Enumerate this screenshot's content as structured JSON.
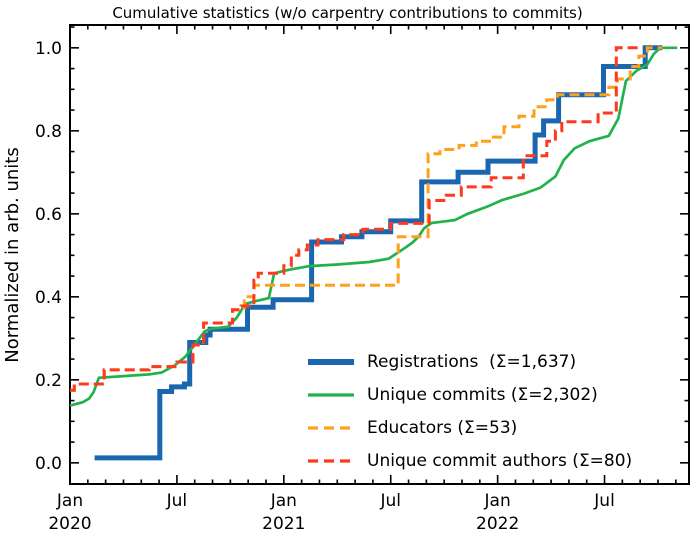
{
  "chart": {
    "background": "#ffffff",
    "axis_color": "#000000"
  },
  "chart_data": {
    "type": "line",
    "title": "Cumulative statistics (w/o carpentry contributions to commits)",
    "xlabel": "",
    "grid": false,
    "legend_position": "lower right",
    "x_axis": {
      "lim": [
        2020.0,
        2022.895
      ],
      "minor_tick_months": 1,
      "minor_tick_count": 35,
      "major_ticks": [
        {
          "month_index": 0,
          "label": "Jan",
          "year": "2020"
        },
        {
          "month_index": 6,
          "label": "Jul"
        },
        {
          "month_index": 12,
          "label": "Jan",
          "year": "2021"
        },
        {
          "month_index": 18,
          "label": "Jul"
        },
        {
          "month_index": 24,
          "label": "Jan",
          "year": "2022"
        },
        {
          "month_index": 30,
          "label": "Jul"
        }
      ]
    },
    "y_axis": {
      "label": "Normalized in arb. units",
      "lim": [
        -0.051,
        1.055
      ],
      "minor_step": 0.05,
      "major_ticks": [
        {
          "value": 0.0,
          "label": "0.0"
        },
        {
          "value": 0.2,
          "label": "0.2"
        },
        {
          "value": 0.4,
          "label": "0.4"
        },
        {
          "value": 0.6,
          "label": "0.6"
        },
        {
          "value": 0.8,
          "label": "0.8"
        },
        {
          "value": 1.0,
          "label": "1.0"
        }
      ]
    },
    "series": [
      {
        "id": "registrations",
        "name": "Registrations",
        "total": 1637,
        "legend_label": "Registrations  (Σ=1,637)",
        "color": "#1b67af",
        "style": "solid",
        "width": 5,
        "interp": "step",
        "end_x": 2022.77,
        "points": [
          [
            2020.115,
            0.012
          ],
          [
            2020.42,
            0.172
          ],
          [
            2020.475,
            0.183
          ],
          [
            2020.535,
            0.19
          ],
          [
            2020.56,
            0.29
          ],
          [
            2020.635,
            0.308
          ],
          [
            2020.655,
            0.322
          ],
          [
            2020.83,
            0.375
          ],
          [
            2020.95,
            0.393
          ],
          [
            2021.13,
            0.532
          ],
          [
            2021.27,
            0.545
          ],
          [
            2021.365,
            0.557
          ],
          [
            2021.5,
            0.583
          ],
          [
            2021.645,
            0.677
          ],
          [
            2021.815,
            0.7
          ],
          [
            2021.955,
            0.727
          ],
          [
            2022.175,
            0.79
          ],
          [
            2022.215,
            0.824
          ],
          [
            2022.285,
            0.887
          ],
          [
            2022.495,
            0.955
          ],
          [
            2022.69,
            1.0
          ]
        ]
      },
      {
        "id": "unique-commits",
        "name": "Unique commits",
        "total": 2302,
        "legend_label": "Unique commits (Σ=2,302)",
        "color": "#21b24c",
        "style": "solid",
        "width": 2.7,
        "interp": "linear",
        "end_x": 2022.84,
        "points": [
          [
            2020.0,
            0.138
          ],
          [
            2020.06,
            0.146
          ],
          [
            2020.09,
            0.155
          ],
          [
            2020.11,
            0.17
          ],
          [
            2020.135,
            0.205
          ],
          [
            2020.25,
            0.209
          ],
          [
            2020.37,
            0.213
          ],
          [
            2020.43,
            0.218
          ],
          [
            2020.49,
            0.235
          ],
          [
            2020.54,
            0.256
          ],
          [
            2020.59,
            0.29
          ],
          [
            2020.63,
            0.317
          ],
          [
            2020.66,
            0.323
          ],
          [
            2020.74,
            0.328
          ],
          [
            2020.78,
            0.35
          ],
          [
            2020.82,
            0.383
          ],
          [
            2020.87,
            0.39
          ],
          [
            2020.93,
            0.397
          ],
          [
            2020.955,
            0.457
          ],
          [
            2021.02,
            0.465
          ],
          [
            2021.12,
            0.474
          ],
          [
            2021.25,
            0.478
          ],
          [
            2021.4,
            0.484
          ],
          [
            2021.49,
            0.492
          ],
          [
            2021.55,
            0.512
          ],
          [
            2021.6,
            0.53
          ],
          [
            2021.63,
            0.545
          ],
          [
            2021.655,
            0.565
          ],
          [
            2021.69,
            0.578
          ],
          [
            2021.8,
            0.585
          ],
          [
            2021.86,
            0.6
          ],
          [
            2021.95,
            0.617
          ],
          [
            2022.02,
            0.633
          ],
          [
            2022.12,
            0.648
          ],
          [
            2022.2,
            0.663
          ],
          [
            2022.27,
            0.69
          ],
          [
            2022.31,
            0.73
          ],
          [
            2022.36,
            0.758
          ],
          [
            2022.43,
            0.775
          ],
          [
            2022.52,
            0.788
          ],
          [
            2022.565,
            0.83
          ],
          [
            2022.6,
            0.92
          ],
          [
            2022.65,
            0.945
          ],
          [
            2022.7,
            0.96
          ],
          [
            2022.73,
            0.985
          ],
          [
            2022.76,
            1.0
          ]
        ]
      },
      {
        "id": "educators",
        "name": "Educators",
        "total": 53,
        "legend_label": "Educators (Σ=53)",
        "color": "#ffa01c",
        "style": "dashed",
        "dash": "10 5",
        "width": 3,
        "interp": "step",
        "end_x": 2022.77,
        "points": [
          [
            2020.0,
            0.175
          ],
          [
            2020.02,
            0.19
          ],
          [
            2020.16,
            0.224
          ],
          [
            2020.37,
            0.232
          ],
          [
            2020.5,
            0.243
          ],
          [
            2020.575,
            0.284
          ],
          [
            2020.625,
            0.337
          ],
          [
            2020.76,
            0.369
          ],
          [
            2020.815,
            0.4
          ],
          [
            2020.86,
            0.428
          ],
          [
            2021.535,
            0.545
          ],
          [
            2021.675,
            0.745
          ],
          [
            2021.73,
            0.755
          ],
          [
            2021.82,
            0.765
          ],
          [
            2021.9,
            0.775
          ],
          [
            2021.97,
            0.785
          ],
          [
            2022.03,
            0.81
          ],
          [
            2022.1,
            0.835
          ],
          [
            2022.17,
            0.858
          ],
          [
            2022.23,
            0.875
          ],
          [
            2022.28,
            0.887
          ],
          [
            2022.52,
            0.905
          ],
          [
            2022.56,
            0.925
          ],
          [
            2022.62,
            0.955
          ],
          [
            2022.66,
            0.98
          ],
          [
            2022.7,
            1.0
          ]
        ]
      },
      {
        "id": "unique-commit-authors",
        "name": "Unique commit authors",
        "total": 80,
        "legend_label": "Unique commit authors (Σ=80)",
        "color": "#fd3a1d",
        "style": "dashed",
        "dash": "10 5",
        "width": 3,
        "interp": "step",
        "end_x": 2022.68,
        "points": [
          [
            2020.0,
            0.175
          ],
          [
            2020.02,
            0.19
          ],
          [
            2020.16,
            0.224
          ],
          [
            2020.37,
            0.232
          ],
          [
            2020.5,
            0.243
          ],
          [
            2020.575,
            0.284
          ],
          [
            2020.625,
            0.337
          ],
          [
            2020.76,
            0.369
          ],
          [
            2020.8,
            0.378
          ],
          [
            2020.86,
            0.44
          ],
          [
            2020.88,
            0.457
          ],
          [
            2021.0,
            0.475
          ],
          [
            2021.035,
            0.5
          ],
          [
            2021.07,
            0.513
          ],
          [
            2021.11,
            0.525
          ],
          [
            2021.16,
            0.538
          ],
          [
            2021.28,
            0.55
          ],
          [
            2021.37,
            0.563
          ],
          [
            2021.5,
            0.577
          ],
          [
            2021.68,
            0.632
          ],
          [
            2021.76,
            0.645
          ],
          [
            2021.83,
            0.665
          ],
          [
            2021.97,
            0.687
          ],
          [
            2022.12,
            0.74
          ],
          [
            2022.23,
            0.775
          ],
          [
            2022.27,
            0.8
          ],
          [
            2022.3,
            0.822
          ],
          [
            2022.47,
            0.843
          ],
          [
            2022.555,
            1.0
          ]
        ]
      }
    ]
  }
}
